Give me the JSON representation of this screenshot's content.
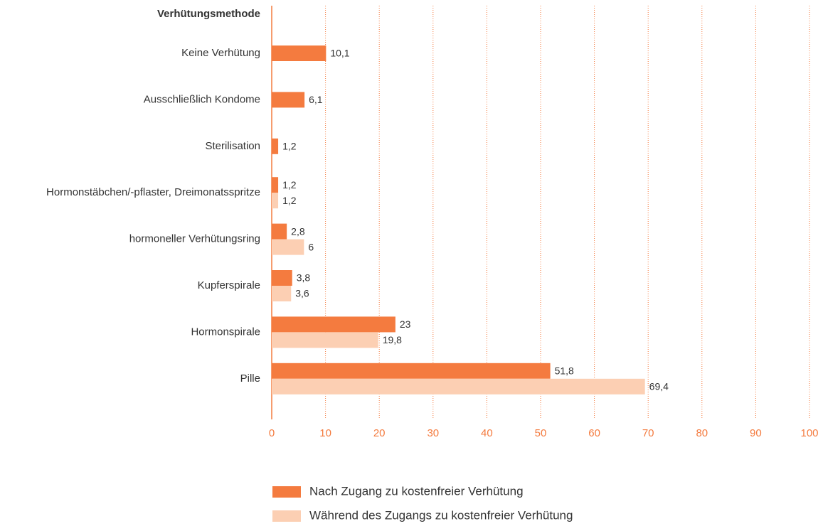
{
  "chart_data": {
    "type": "bar",
    "orientation": "horizontal",
    "y_label": "Verhütungsmethode",
    "categories": [
      "Keine Verhütung",
      "Ausschließlich Kondome",
      "Sterilisation",
      "Hormonstäbchen/-pflaster, Dreimonatsspritze",
      "hormoneller Verhütungsring",
      "Kupferspirale",
      "Hormonspirale",
      "Pille"
    ],
    "series": [
      {
        "name": "Nach Zugang zu kostenfreier Verhütung",
        "color": "#f47b3f",
        "values": [
          10.1,
          6.1,
          1.2,
          1.2,
          2.8,
          3.8,
          23,
          51.8
        ],
        "value_labels": [
          "10,1",
          "6,1",
          "1,2",
          "1,2",
          "2,8",
          "3,8",
          "23",
          "51,8"
        ]
      },
      {
        "name": "Während des Zugangs zu kostenfreier Verhütung",
        "color": "#fccfb3",
        "values": [
          null,
          null,
          null,
          1.2,
          6,
          3.6,
          19.8,
          69.4
        ],
        "value_labels": [
          null,
          null,
          null,
          "1,2",
          "6",
          "3,6",
          "19,8",
          "69,4"
        ]
      }
    ],
    "xlim": [
      0,
      100
    ],
    "xticks": [
      0,
      10,
      20,
      30,
      40,
      50,
      60,
      70,
      80,
      90,
      100
    ],
    "grid": true,
    "grid_color": "#f47b3f",
    "axis_color": "#f47b3f",
    "legend": "bottom"
  }
}
